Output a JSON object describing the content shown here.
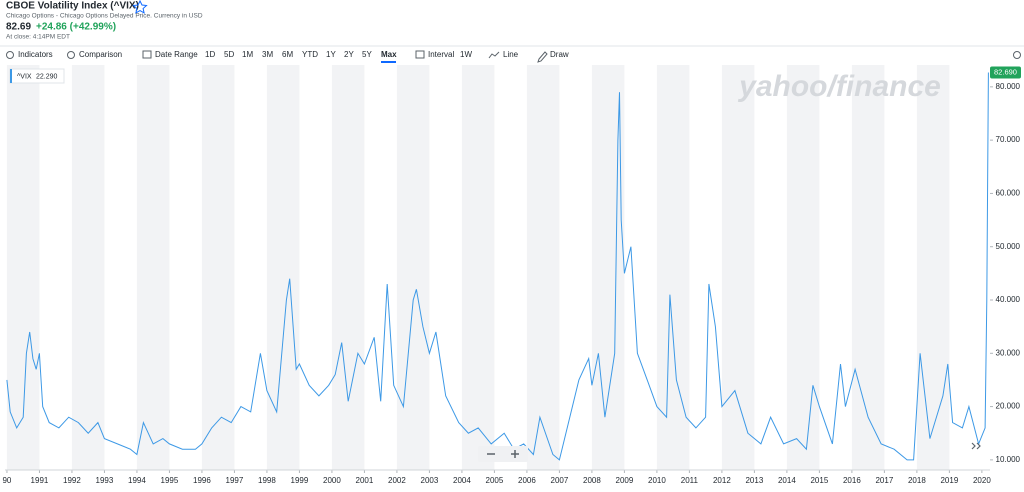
{
  "header": {
    "title": "CBOE Volatility Index (^VIX)",
    "subtitle": "Chicago Options - Chicago Options Delayed Price. Currency in USD",
    "price": "82.69",
    "change": "+24.86 (+42.99%)",
    "close_time": "At close: 4:14PM EDT"
  },
  "toolbar": {
    "indicators": "Indicators",
    "comparison": "Comparison",
    "date_range": "Date Range",
    "ranges": [
      "1D",
      "5D",
      "1M",
      "3M",
      "6M",
      "YTD",
      "1Y",
      "2Y",
      "5Y",
      "Max"
    ],
    "active_range": 9,
    "interval": "Interval",
    "interval_value": "1W",
    "line": "Line",
    "draw": "Draw"
  },
  "chart_data": {
    "type": "line",
    "watermark": "yahoo/finance",
    "legend_value": "22.290",
    "last_label": "82.690",
    "last_label_color": "#21a35b",
    "x": [
      1990.0,
      1990.1,
      1990.3,
      1990.5,
      1990.6,
      1990.7,
      1990.8,
      1990.9,
      1991.0,
      1991.1,
      1991.3,
      1991.6,
      1991.9,
      1992.2,
      1992.5,
      1992.8,
      1993.0,
      1993.4,
      1993.8,
      1994.0,
      1994.2,
      1994.5,
      1994.8,
      1995.0,
      1995.4,
      1995.8,
      1996.0,
      1996.3,
      1996.6,
      1996.9,
      1997.2,
      1997.5,
      1997.8,
      1998.0,
      1998.3,
      1998.6,
      1998.7,
      1998.9,
      1999.0,
      1999.3,
      1999.6,
      1999.9,
      2000.1,
      2000.3,
      2000.5,
      2000.8,
      2001.0,
      2001.3,
      2001.5,
      2001.7,
      2001.9,
      2002.2,
      2002.5,
      2002.6,
      2002.8,
      2003.0,
      2003.2,
      2003.5,
      2003.9,
      2004.2,
      2004.5,
      2004.9,
      2005.3,
      2005.6,
      2005.9,
      2006.2,
      2006.4,
      2006.8,
      2007.0,
      2007.2,
      2007.6,
      2007.9,
      2008.0,
      2008.2,
      2008.4,
      2008.7,
      2008.8,
      2008.85,
      2008.9,
      2009.0,
      2009.2,
      2009.4,
      2009.7,
      2010.0,
      2010.3,
      2010.4,
      2010.6,
      2010.9,
      2011.2,
      2011.5,
      2011.6,
      2011.8,
      2012.0,
      2012.4,
      2012.8,
      2013.2,
      2013.5,
      2013.9,
      2014.3,
      2014.6,
      2014.8,
      2015.0,
      2015.4,
      2015.65,
      2015.8,
      2016.1,
      2016.5,
      2016.9,
      2017.3,
      2017.7,
      2017.9,
      2018.1,
      2018.4,
      2018.8,
      2018.95,
      2019.1,
      2019.4,
      2019.6,
      2019.9,
      2020.1,
      2020.15,
      2020.2
    ],
    "series": [
      {
        "name": "^VIX",
        "color": "#3d99e6",
        "values": [
          25,
          19,
          16,
          18,
          30,
          34,
          29,
          27,
          30,
          20,
          17,
          16,
          18,
          17,
          15,
          17,
          14,
          13,
          12,
          11,
          17,
          13,
          14,
          13,
          12,
          12,
          13,
          16,
          18,
          17,
          20,
          19,
          30,
          23,
          19,
          40,
          44,
          27,
          28,
          24,
          22,
          24,
          26,
          32,
          21,
          30,
          28,
          33,
          21,
          43,
          24,
          20,
          40,
          42,
          35,
          30,
          34,
          22,
          17,
          15,
          16,
          13,
          15,
          12,
          13,
          11,
          18,
          11,
          10,
          15,
          25,
          29,
          24,
          30,
          18,
          30,
          70,
          79,
          55,
          45,
          50,
          30,
          25,
          20,
          18,
          41,
          25,
          18,
          16,
          18,
          43,
          35,
          20,
          23,
          15,
          13,
          18,
          13,
          14,
          12,
          24,
          20,
          13,
          28,
          20,
          27,
          18,
          13,
          12,
          10,
          10,
          30,
          14,
          22,
          28,
          17,
          16,
          20,
          13,
          16,
          40,
          82.69
        ]
      }
    ],
    "xlim": [
      1989.94,
      2020.25
    ],
    "ylim": [
      8.1,
      84.1
    ],
    "xticks": [
      {
        "value": 1990,
        "label": "90"
      },
      1991,
      1992,
      1993,
      1994,
      1995,
      1996,
      1997,
      1998,
      1999,
      2000,
      2001,
      2002,
      2003,
      2004,
      2005,
      2006,
      2007,
      2008,
      2009,
      2010,
      2011,
      2012,
      2013,
      2014,
      2015,
      2016,
      2017,
      2018,
      2019,
      2020
    ],
    "yticks": [
      {
        "value": 10,
        "label": "10.000"
      },
      {
        "value": 20,
        "label": "20.000"
      },
      {
        "value": 30,
        "label": "30.000"
      },
      {
        "value": 40,
        "label": "40.000"
      },
      {
        "value": 50,
        "label": "50.000"
      },
      {
        "value": 60,
        "label": "60.000"
      },
      {
        "value": 70,
        "label": "70.000"
      },
      {
        "value": 80,
        "label": "80.000"
      }
    ],
    "year_shading": true
  }
}
